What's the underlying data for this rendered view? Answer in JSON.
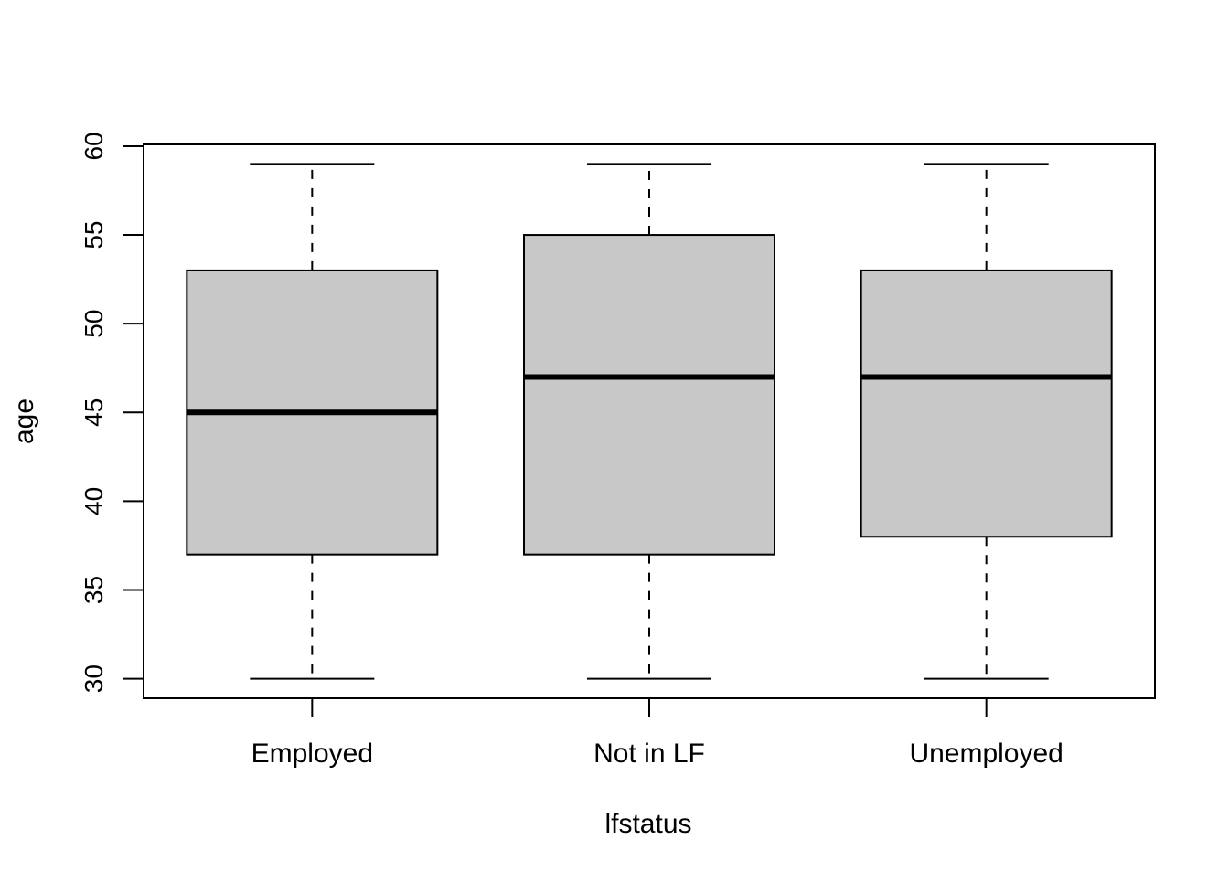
{
  "chart_data": {
    "type": "boxplot",
    "title": "",
    "xlabel": "lfstatus",
    "ylabel": "age",
    "ylim": [
      28.9,
      60.1
    ],
    "yticks": [
      30,
      35,
      40,
      45,
      50,
      55,
      60
    ],
    "categories": [
      "Employed",
      "Not in LF",
      "Unemployed"
    ],
    "boxes": [
      {
        "category": "Employed",
        "min": 30,
        "q1": 37,
        "median": 45,
        "q3": 53,
        "max": 59
      },
      {
        "category": "Not in LF",
        "min": 30,
        "q1": 37,
        "median": 47,
        "q3": 55,
        "max": 59
      },
      {
        "category": "Unemployed",
        "min": 30,
        "q1": 38,
        "median": 47,
        "q3": 53,
        "max": 59
      }
    ],
    "grid": false,
    "colors": {
      "box_fill": "#c8c8c8",
      "stroke": "#000000",
      "background": "#ffffff"
    }
  }
}
